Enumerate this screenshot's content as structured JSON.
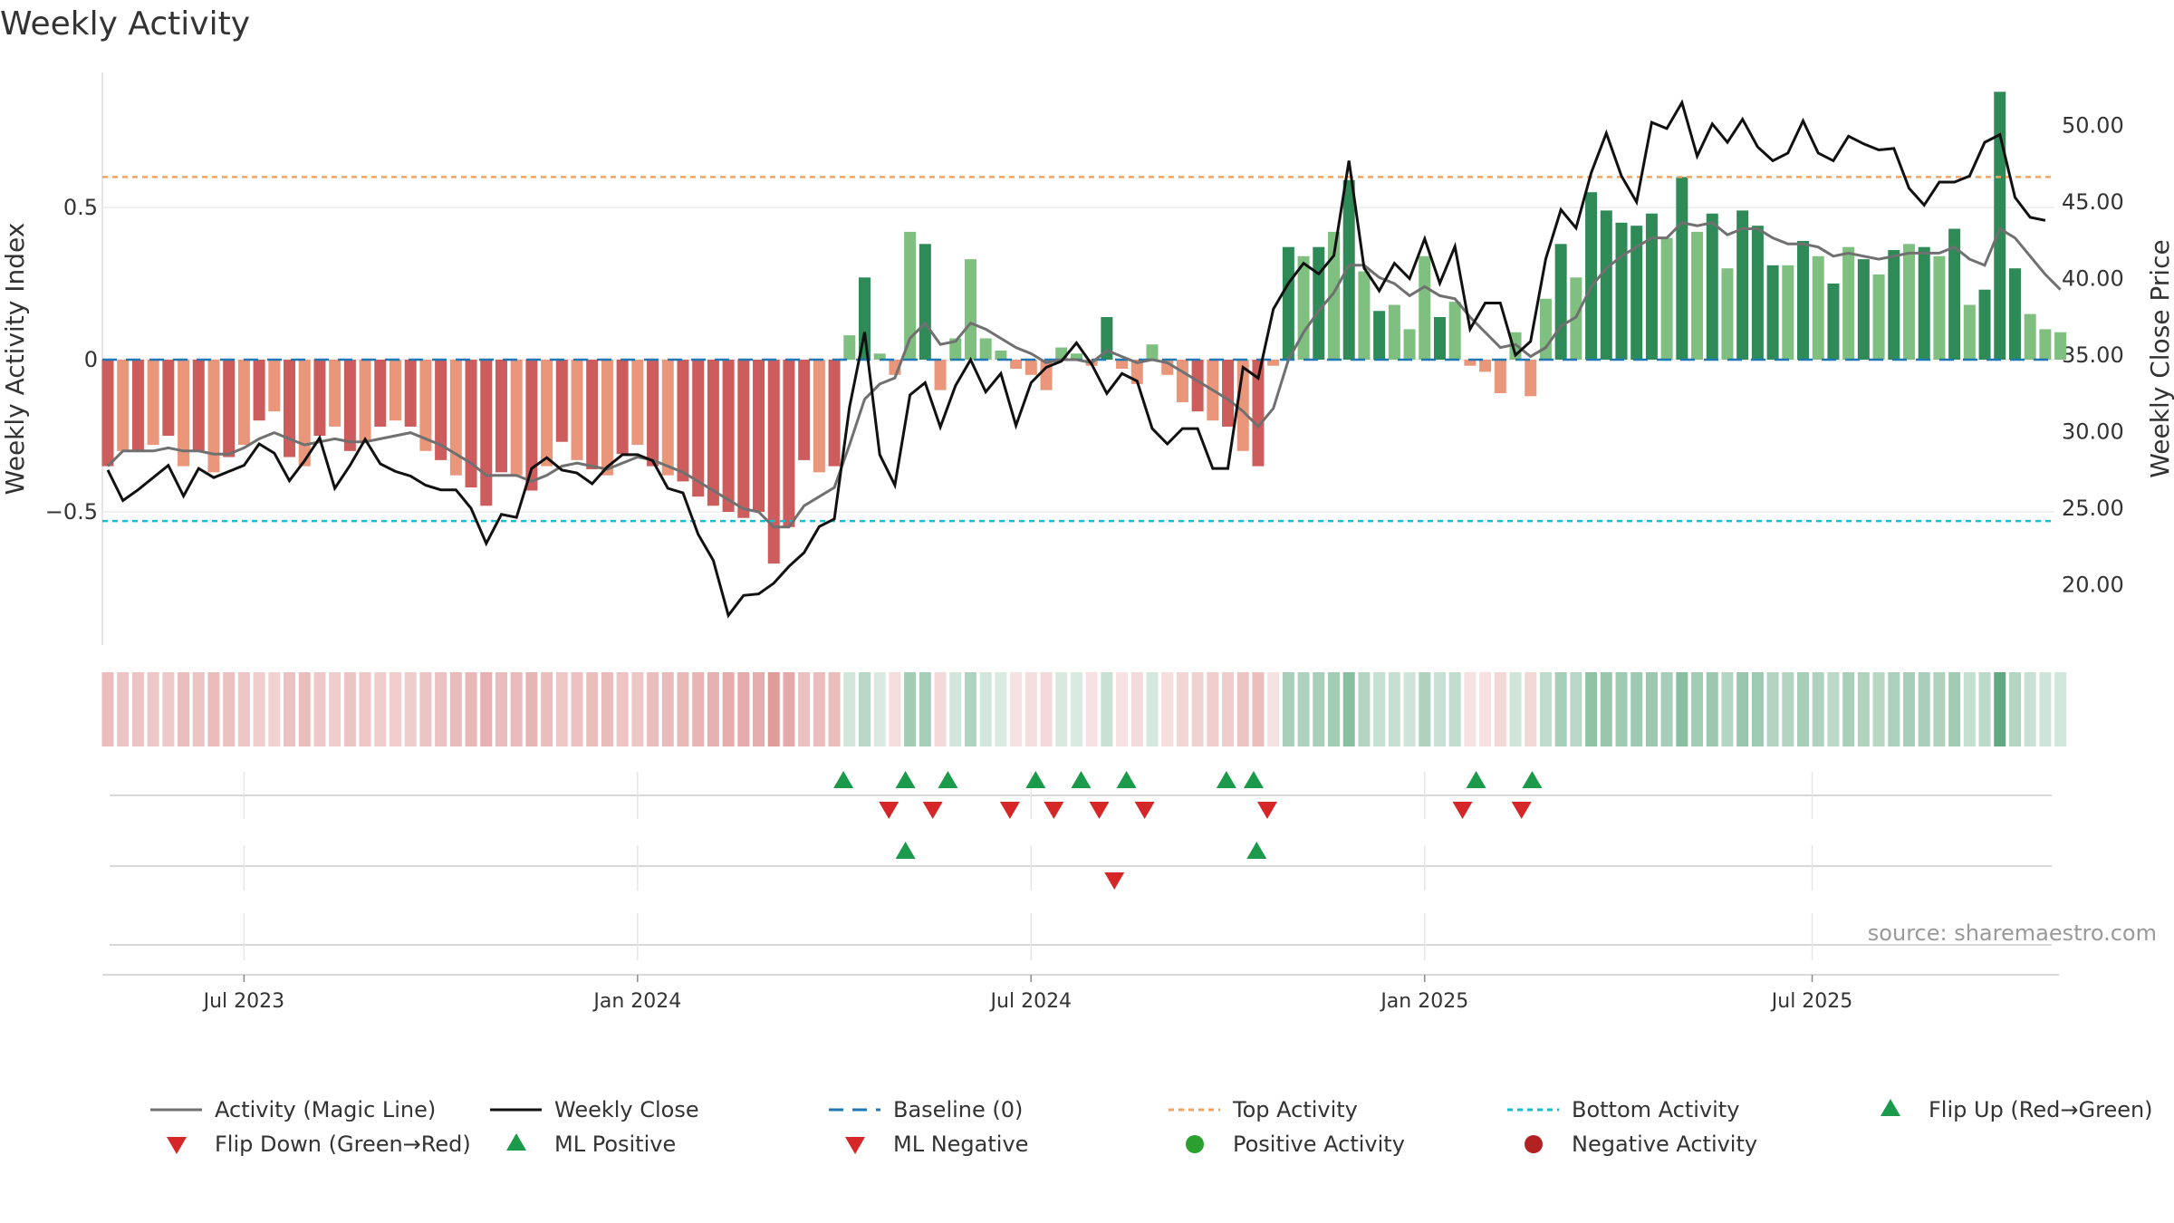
{
  "chart_data": {
    "type": "bar",
    "title": "Weekly Activity",
    "ylabel": "Weekly Activity Index",
    "y2label": "Weekly Close Price",
    "source": "source: sharemaestro.com",
    "ylim": [
      -0.95,
      0.95
    ],
    "y2lim": [
      15.1,
      52.2
    ],
    "yticks": [
      {
        "v": 0.5,
        "label": "0.5"
      },
      {
        "v": 0,
        "label": "0"
      },
      {
        "v": -0.5,
        "label": "−0.5"
      }
    ],
    "y2ticks": [
      {
        "v": 50,
        "label": "50.00"
      },
      {
        "v": 45,
        "label": "45.00"
      },
      {
        "v": 40,
        "label": "40.00"
      },
      {
        "v": 35,
        "label": "35.00"
      },
      {
        "v": 30,
        "label": "30.00"
      },
      {
        "v": 25,
        "label": "25.00"
      },
      {
        "v": 20,
        "label": "20.00"
      }
    ],
    "xticks": [
      {
        "week": 9,
        "label": "Jul 2023"
      },
      {
        "week": 35,
        "label": "Jan 2024"
      },
      {
        "week": 61,
        "label": "Jul 2024"
      },
      {
        "week": 87,
        "label": "Jan 2025"
      },
      {
        "week": 112.6,
        "label": "Jul 2025"
      }
    ],
    "top_activity": 0.6,
    "bottom_activity": -0.53,
    "activity": [
      -0.35,
      -0.3,
      -0.3,
      -0.28,
      -0.25,
      -0.35,
      -0.3,
      -0.37,
      -0.32,
      -0.28,
      -0.2,
      -0.17,
      -0.32,
      -0.35,
      -0.25,
      -0.22,
      -0.3,
      -0.27,
      -0.22,
      -0.2,
      -0.22,
      -0.3,
      -0.33,
      -0.38,
      -0.42,
      -0.48,
      -0.37,
      -0.38,
      -0.43,
      -0.35,
      -0.27,
      -0.33,
      -0.36,
      -0.38,
      -0.31,
      -0.28,
      -0.35,
      -0.38,
      -0.4,
      -0.45,
      -0.48,
      -0.5,
      -0.52,
      -0.5,
      -0.67,
      -0.55,
      -0.33,
      -0.37,
      -0.35,
      0.08,
      0.27,
      0.02,
      -0.05,
      0.42,
      0.38,
      -0.1,
      0.07,
      0.33,
      0.07,
      0.03,
      -0.03,
      -0.05,
      -0.1,
      0.04,
      0.02,
      -0.02,
      0.14,
      -0.03,
      -0.08,
      0.05,
      -0.05,
      -0.14,
      -0.17,
      -0.2,
      -0.22,
      -0.3,
      -0.35,
      -0.02,
      0.37,
      0.34,
      0.37,
      0.42,
      0.59,
      0.29,
      0.16,
      0.18,
      0.1,
      0.34,
      0.14,
      0.19,
      -0.02,
      -0.04,
      -0.11,
      0.09,
      -0.12,
      0.2,
      0.38,
      0.27,
      0.55,
      0.49,
      0.45,
      0.44,
      0.48,
      0.4,
      0.6,
      0.42,
      0.48,
      0.3,
      0.49,
      0.44,
      0.31,
      0.31,
      0.39,
      0.34,
      0.25,
      0.37,
      0.33,
      0.28,
      0.36,
      0.38,
      0.37,
      0.34,
      0.43,
      0.18,
      0.23,
      0.88,
      0.3,
      0.15,
      0.1,
      0.09
    ],
    "magic_line": [
      -0.35,
      -0.3,
      -0.3,
      -0.3,
      -0.29,
      -0.3,
      -0.3,
      -0.31,
      -0.31,
      -0.29,
      -0.26,
      -0.24,
      -0.26,
      -0.28,
      -0.27,
      -0.26,
      -0.27,
      -0.27,
      -0.26,
      -0.25,
      -0.24,
      -0.26,
      -0.28,
      -0.31,
      -0.34,
      -0.38,
      -0.38,
      -0.38,
      -0.4,
      -0.38,
      -0.35,
      -0.34,
      -0.35,
      -0.36,
      -0.34,
      -0.32,
      -0.33,
      -0.35,
      -0.37,
      -0.4,
      -0.43,
      -0.46,
      -0.49,
      -0.5,
      -0.55,
      -0.55,
      -0.48,
      -0.45,
      -0.42,
      -0.28,
      -0.13,
      -0.08,
      -0.06,
      0.07,
      0.12,
      0.05,
      0.06,
      0.12,
      0.1,
      0.07,
      0.04,
      0.02,
      -0.01,
      0,
      0,
      -0.01,
      0.03,
      0.01,
      -0.01,
      0,
      -0.01,
      -0.04,
      -0.07,
      -0.1,
      -0.13,
      -0.17,
      -0.22,
      -0.16,
      0,
      0.09,
      0.16,
      0.22,
      0.31,
      0.31,
      0.27,
      0.25,
      0.21,
      0.24,
      0.21,
      0.2,
      0.14,
      0.09,
      0.04,
      0.05,
      0.01,
      0.04,
      0.11,
      0.14,
      0.24,
      0.3,
      0.34,
      0.37,
      0.4,
      0.4,
      0.45,
      0.44,
      0.45,
      0.41,
      0.43,
      0.43,
      0.4,
      0.38,
      0.38,
      0.37,
      0.34,
      0.35,
      0.34,
      0.33,
      0.34,
      0.35,
      0.35,
      0.35,
      0.37,
      0.33,
      0.31,
      0.43,
      0.4,
      0.34,
      0.28,
      0.23
    ],
    "weekly_close": [
      27.5,
      25.5,
      26.2,
      27,
      27.8,
      25.8,
      27.6,
      27,
      27.4,
      27.8,
      29.2,
      28.6,
      26.8,
      28.1,
      29.6,
      26.3,
      27.8,
      29.5,
      27.9,
      27.4,
      27.1,
      26.5,
      26.2,
      26.2,
      25,
      22.7,
      24.6,
      24.4,
      27.6,
      28.3,
      27.5,
      27.3,
      26.6,
      27.7,
      28.5,
      28.5,
      28.1,
      26.3,
      26,
      23.3,
      21.6,
      18,
      19.3,
      19.4,
      20.1,
      21.2,
      22.1,
      23.8,
      24.3,
      31.6,
      36.5,
      28.5,
      26.5,
      32.4,
      33.2,
      30.3,
      33,
      34.7,
      32.6,
      33.8,
      30.4,
      33.2,
      34.2,
      34.6,
      35.8,
      34.4,
      32.5,
      33.8,
      33.3,
      30.2,
      29.2,
      30.2,
      30.2,
      27.6,
      27.6,
      34.2,
      33.5,
      38,
      39.7,
      41,
      40.3,
      41.5,
      47.7,
      40.7,
      39.2,
      41,
      40,
      42.6,
      39.7,
      42.1,
      36.7,
      38.4,
      38.4,
      35,
      35.9,
      41.3,
      44.5,
      43.3,
      46.9,
      49.5,
      46.7,
      45,
      50.2,
      49.8,
      51.5,
      48,
      50.1,
      48.9,
      50.4,
      48.6,
      47.7,
      48.2,
      50.3,
      48.2,
      47.7,
      49.3,
      48.8,
      48.4,
      48.5,
      45.9,
      44.8,
      46.3,
      46.3,
      46.7,
      48.9,
      49.4,
      45.3,
      44,
      43.8
    ],
    "flip_up": [
      48.6,
      52.7,
      55.5,
      61.3,
      64.3,
      67.3,
      73.9,
      75.7,
      90.4,
      94.1
    ],
    "flip_down": [
      51.6,
      54.5,
      59.6,
      62.5,
      65.5,
      68.5,
      76.6,
      89.5,
      93.4
    ],
    "ml_positive": [
      52.7,
      75.9
    ],
    "ml_negative": [
      66.5
    ],
    "legend": [
      {
        "label": "Activity (Magic Line)",
        "symbol": "line-gray"
      },
      {
        "label": "Weekly Close",
        "symbol": "line-black"
      },
      {
        "label": "Baseline (0)",
        "symbol": "dash-blue"
      },
      {
        "label": "Top Activity",
        "symbol": "dot-orange"
      },
      {
        "label": "Bottom Activity",
        "symbol": "dot-cyan"
      },
      {
        "label": "Flip Up (Red→Green)",
        "symbol": "tri-up-green"
      },
      {
        "label": "Flip Down (Green→Red)",
        "symbol": "tri-down-red"
      },
      {
        "label": "ML Positive",
        "symbol": "tri-up-green"
      },
      {
        "label": "ML Negative",
        "symbol": "tri-down-red"
      },
      {
        "label": "Positive Activity",
        "symbol": "circle-green"
      },
      {
        "label": "Negative Activity",
        "symbol": "circle-darkred"
      }
    ]
  },
  "colors": {
    "pos_strong": "#2e8b57",
    "pos_light": "#7fbf7f",
    "neg_strong": "#cd5c5c",
    "neg_light": "#e9967a",
    "magic_line": "#707070",
    "close": "#111111",
    "baseline": "#1f77b4",
    "top": "#f4a261",
    "bottom": "#17becf",
    "flip_up": "#1a9a4a",
    "flip_down": "#d62728",
    "pos_dot": "#2ca02c",
    "neg_dot": "#b22222"
  }
}
